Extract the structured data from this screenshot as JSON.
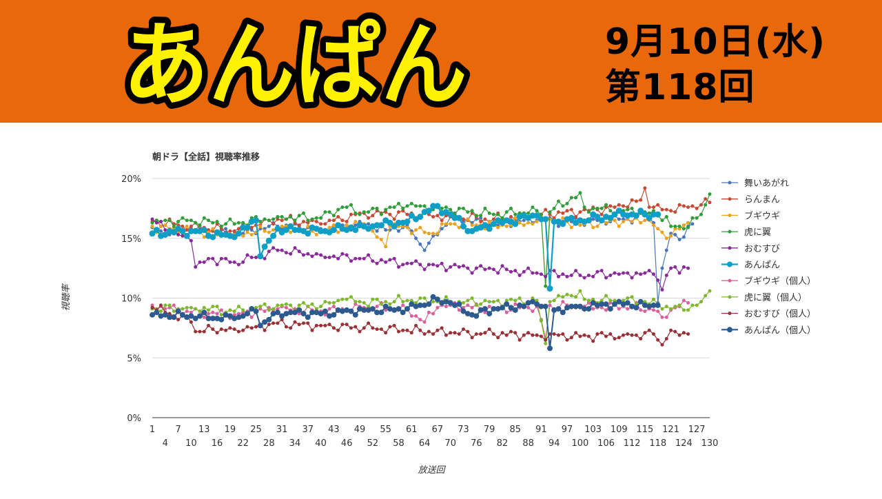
{
  "header": {
    "title": "あんぱん",
    "date": "9月10日(水)",
    "episode": "第118回",
    "colors": {
      "banner": "#e8680a",
      "logo_fill": "#fff200",
      "logo_outline": "#000000"
    }
  },
  "chart_data": {
    "type": "line",
    "title": "朝ドラ【全話】視聴率推移",
    "xlabel": "放送回",
    "ylabel": "視聴率",
    "ylim": [
      0,
      20
    ],
    "yticks": [
      "0%",
      "5%",
      "10%",
      "15%",
      "20%"
    ],
    "xlim": [
      1,
      130
    ],
    "xticks_top": [
      1,
      7,
      13,
      19,
      25,
      31,
      37,
      43,
      49,
      55,
      61,
      67,
      73,
      79,
      85,
      91,
      97,
      103,
      109,
      115,
      121,
      127
    ],
    "xticks_bottom": [
      4,
      10,
      16,
      22,
      28,
      34,
      40,
      46,
      52,
      58,
      64,
      70,
      76,
      82,
      88,
      94,
      100,
      106,
      112,
      118,
      124,
      130
    ],
    "legend_position": "right",
    "grid": "horizontal",
    "series": [
      {
        "name": "舞いあがれ",
        "color": "#4a76b8",
        "marker": 2.5,
        "width": 1.2,
        "thick": false,
        "anchors": [
          [
            1,
            15.9
          ],
          [
            5,
            15.3
          ],
          [
            10,
            15.8
          ],
          [
            20,
            15.4
          ],
          [
            30,
            16.0
          ],
          [
            40,
            15.8
          ],
          [
            50,
            16.2
          ],
          [
            55,
            15.7
          ],
          [
            60,
            16.1
          ],
          [
            64,
            14.0
          ],
          [
            67,
            15.3
          ],
          [
            70,
            16.8
          ],
          [
            80,
            16.2
          ],
          [
            90,
            16.5
          ],
          [
            100,
            16.4
          ],
          [
            110,
            16.6
          ],
          [
            115,
            16.9
          ],
          [
            117,
            16.3
          ],
          [
            118,
            9.6
          ],
          [
            119,
            12.5
          ],
          [
            121,
            15.4
          ],
          [
            124,
            15.1
          ],
          [
            126,
            16.2
          ]
        ],
        "values": []
      },
      {
        "name": "らんまん",
        "color": "#c84a35",
        "marker": 2.5,
        "width": 1.2,
        "thick": false,
        "anchors": [
          [
            1,
            16.4
          ],
          [
            10,
            16.0
          ],
          [
            20,
            15.6
          ],
          [
            30,
            16.6
          ],
          [
            40,
            16.2
          ],
          [
            50,
            17.1
          ],
          [
            60,
            17.0
          ],
          [
            70,
            16.8
          ],
          [
            80,
            16.6
          ],
          [
            90,
            17.0
          ],
          [
            100,
            17.2
          ],
          [
            110,
            17.7
          ],
          [
            114,
            18.2
          ],
          [
            115,
            19.2
          ],
          [
            116,
            17.6
          ],
          [
            120,
            17.4
          ],
          [
            125,
            17.6
          ],
          [
            130,
            18.0
          ]
        ],
        "values": []
      },
      {
        "name": "ブギウギ",
        "color": "#e8a21d",
        "marker": 2.5,
        "width": 1.2,
        "thick": false,
        "anchors": [
          [
            1,
            16.0
          ],
          [
            10,
            15.6
          ],
          [
            20,
            15.3
          ],
          [
            30,
            15.8
          ],
          [
            40,
            15.6
          ],
          [
            50,
            16.2
          ],
          [
            55,
            14.3
          ],
          [
            56,
            16.0
          ],
          [
            60,
            15.9
          ],
          [
            65,
            15.4
          ],
          [
            70,
            16.2
          ],
          [
            80,
            16.1
          ],
          [
            90,
            16.4
          ],
          [
            91,
            16.8
          ],
          [
            92,
            11.0
          ],
          [
            93,
            16.6
          ],
          [
            100,
            16.1
          ],
          [
            110,
            16.4
          ],
          [
            115,
            16.5
          ],
          [
            118,
            15.8
          ],
          [
            120,
            15.0
          ],
          [
            125,
            16.3
          ]
        ],
        "values": []
      },
      {
        "name": "虎に翼",
        "color": "#2f9e38",
        "marker": 2.5,
        "width": 1.2,
        "thick": false,
        "anchors": [
          [
            1,
            16.3
          ],
          [
            10,
            16.5
          ],
          [
            20,
            16.2
          ],
          [
            30,
            16.8
          ],
          [
            40,
            16.7
          ],
          [
            45,
            17.6
          ],
          [
            50,
            17.2
          ],
          [
            60,
            17.7
          ],
          [
            70,
            17.4
          ],
          [
            80,
            17.0
          ],
          [
            90,
            17.3
          ],
          [
            91,
            17.0
          ],
          [
            92,
            11.0
          ],
          [
            93,
            17.2
          ],
          [
            100,
            18.8
          ],
          [
            101,
            17.6
          ],
          [
            110,
            17.3
          ],
          [
            115,
            17.2
          ],
          [
            120,
            16.8
          ],
          [
            121,
            16.0
          ],
          [
            124,
            15.8
          ],
          [
            128,
            17.0
          ],
          [
            130,
            18.7
          ]
        ],
        "values": []
      },
      {
        "name": "おむすび",
        "color": "#8a2a9a",
        "marker": 2.5,
        "width": 1.2,
        "thick": false,
        "anchors": [
          [
            1,
            16.6
          ],
          [
            5,
            15.5
          ],
          [
            10,
            14.8
          ],
          [
            11,
            12.6
          ],
          [
            15,
            13.3
          ],
          [
            20,
            13.0
          ],
          [
            25,
            13.4
          ],
          [
            30,
            14.0
          ],
          [
            40,
            13.6
          ],
          [
            50,
            13.3
          ],
          [
            60,
            12.9
          ],
          [
            70,
            12.6
          ],
          [
            80,
            12.4
          ],
          [
            90,
            12.1
          ],
          [
            100,
            11.9
          ],
          [
            110,
            12.1
          ],
          [
            117,
            12.0
          ],
          [
            118,
            11.5
          ],
          [
            119,
            10.7
          ],
          [
            120,
            11.9
          ],
          [
            122,
            12.6
          ],
          [
            125,
            12.5
          ]
        ],
        "values": []
      },
      {
        "name": "あんぱん",
        "color": "#0f9fc6",
        "marker": 4.5,
        "width": 2.2,
        "thick": true,
        "anchors": [
          [
            1,
            15.4
          ],
          [
            10,
            15.6
          ],
          [
            20,
            15.1
          ],
          [
            25,
            16.5
          ],
          [
            26,
            13.5
          ],
          [
            30,
            15.8
          ],
          [
            40,
            15.6
          ],
          [
            50,
            16.0
          ],
          [
            60,
            16.4
          ],
          [
            67,
            17.7
          ],
          [
            70,
            17.0
          ],
          [
            75,
            15.6
          ],
          [
            80,
            16.2
          ],
          [
            90,
            16.9
          ],
          [
            92,
            16.6
          ],
          [
            93,
            10.8
          ],
          [
            94,
            16.4
          ],
          [
            100,
            16.5
          ],
          [
            110,
            17.0
          ],
          [
            115,
            17.0
          ],
          [
            118,
            17.0
          ]
        ],
        "values": []
      },
      {
        "name": "ブギウギ（個人）",
        "color": "#d9609a",
        "marker": 2.5,
        "width": 1.2,
        "thick": false,
        "anchors": [
          [
            1,
            9.4
          ],
          [
            10,
            8.8
          ],
          [
            20,
            8.6
          ],
          [
            30,
            9.1
          ],
          [
            40,
            8.9
          ],
          [
            50,
            9.2
          ],
          [
            60,
            9.1
          ],
          [
            64,
            8.0
          ],
          [
            67,
            9.2
          ],
          [
            70,
            9.4
          ],
          [
            80,
            9.1
          ],
          [
            90,
            9.3
          ],
          [
            92,
            6.6
          ],
          [
            93,
            9.4
          ],
          [
            100,
            9.2
          ],
          [
            110,
            9.3
          ],
          [
            117,
            9.0
          ],
          [
            119,
            8.4
          ],
          [
            121,
            9.0
          ],
          [
            125,
            9.6
          ]
        ],
        "values": []
      },
      {
        "name": "虎に翼（個人）",
        "color": "#7fb82c",
        "marker": 2.5,
        "width": 1.2,
        "thick": false,
        "anchors": [
          [
            1,
            9.1
          ],
          [
            10,
            9.2
          ],
          [
            20,
            8.9
          ],
          [
            30,
            9.4
          ],
          [
            40,
            9.3
          ],
          [
            45,
            9.9
          ],
          [
            50,
            9.6
          ],
          [
            60,
            9.8
          ],
          [
            70,
            9.7
          ],
          [
            80,
            9.7
          ],
          [
            90,
            9.8
          ],
          [
            92,
            6.2
          ],
          [
            93,
            9.7
          ],
          [
            100,
            10.6
          ],
          [
            101,
            9.9
          ],
          [
            110,
            9.8
          ],
          [
            115,
            9.7
          ],
          [
            120,
            9.3
          ],
          [
            124,
            9.0
          ],
          [
            128,
            9.7
          ],
          [
            130,
            10.6
          ]
        ],
        "values": []
      },
      {
        "name": "おむすび（個人）",
        "color": "#9a2f35",
        "marker": 2.5,
        "width": 1.2,
        "thick": false,
        "anchors": [
          [
            1,
            9.2
          ],
          [
            5,
            8.7
          ],
          [
            10,
            8.0
          ],
          [
            11,
            7.2
          ],
          [
            15,
            7.4
          ],
          [
            20,
            7.4
          ],
          [
            25,
            7.6
          ],
          [
            30,
            7.9
          ],
          [
            40,
            7.7
          ],
          [
            50,
            7.5
          ],
          [
            60,
            7.3
          ],
          [
            70,
            7.1
          ],
          [
            80,
            7.0
          ],
          [
            90,
            6.9
          ],
          [
            100,
            6.8
          ],
          [
            110,
            6.9
          ],
          [
            117,
            7.0
          ],
          [
            119,
            6.1
          ],
          [
            120,
            6.6
          ],
          [
            122,
            7.2
          ],
          [
            125,
            7.0
          ]
        ],
        "values": []
      },
      {
        "name": "あんぱん（個人）",
        "color": "#2d5a8e",
        "marker": 4,
        "width": 2,
        "thick": true,
        "anchors": [
          [
            1,
            8.6
          ],
          [
            10,
            8.5
          ],
          [
            20,
            8.3
          ],
          [
            25,
            8.9
          ],
          [
            26,
            7.7
          ],
          [
            30,
            8.8
          ],
          [
            40,
            8.7
          ],
          [
            50,
            9.0
          ],
          [
            60,
            9.1
          ],
          [
            67,
            9.9
          ],
          [
            70,
            9.6
          ],
          [
            75,
            8.6
          ],
          [
            80,
            9.1
          ],
          [
            90,
            9.5
          ],
          [
            92,
            9.3
          ],
          [
            93,
            5.8
          ],
          [
            94,
            9.0
          ],
          [
            100,
            9.3
          ],
          [
            110,
            9.5
          ],
          [
            115,
            9.4
          ],
          [
            118,
            9.4
          ]
        ],
        "values": []
      }
    ]
  }
}
